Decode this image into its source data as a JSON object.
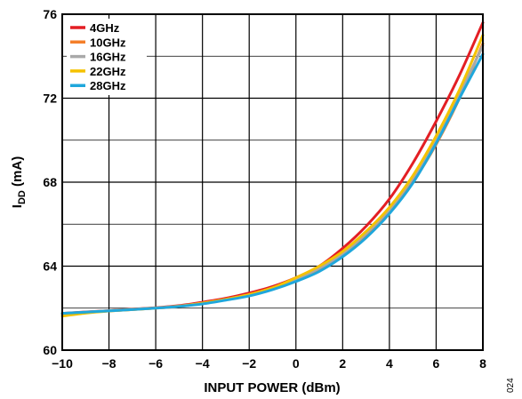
{
  "figure_id": "024",
  "chart_data": {
    "type": "line",
    "title": "",
    "xlabel": "INPUT POWER (dBm)",
    "ylabel": "I_DD (mA)",
    "ylabel_main": "I",
    "ylabel_sub": "DD",
    "ylabel_unit": " (mA)",
    "xlim": [
      -10,
      8
    ],
    "ylim": [
      60,
      76
    ],
    "xticks": [
      -10,
      -8,
      -6,
      -4,
      -2,
      0,
      2,
      4,
      6,
      8
    ],
    "xtick_labels": [
      "−10",
      "−8",
      "−6",
      "−4",
      "−2",
      "0",
      "2",
      "4",
      "6",
      "8"
    ],
    "yticks": [
      60,
      64,
      68,
      72,
      76
    ],
    "ytick_labels": [
      "60",
      "64",
      "68",
      "72",
      "76"
    ],
    "grid": true,
    "legend_position": "top-left",
    "x": [
      -10,
      -9,
      -8,
      -7,
      -6,
      -5,
      -4,
      -3,
      -2,
      -1,
      0,
      1,
      2,
      3,
      4,
      5,
      6,
      7,
      8
    ],
    "series": [
      {
        "name": "4GHz",
        "color": "#e31e24",
        "values": [
          61.75,
          61.82,
          61.88,
          61.95,
          62.02,
          62.12,
          62.28,
          62.47,
          62.72,
          63.03,
          63.45,
          64.0,
          64.85,
          65.9,
          67.2,
          68.9,
          70.9,
          73.1,
          75.6
        ]
      },
      {
        "name": "10GHz",
        "color": "#f47f2a",
        "values": [
          61.72,
          61.8,
          61.87,
          61.93,
          62.0,
          62.08,
          62.22,
          62.4,
          62.62,
          62.93,
          63.35,
          63.85,
          64.5,
          65.45,
          66.55,
          68.0,
          69.8,
          72.0,
          74.6
        ]
      },
      {
        "name": "16GHz",
        "color": "#a9a9a9",
        "values": [
          61.74,
          61.81,
          61.88,
          61.94,
          62.01,
          62.1,
          62.24,
          62.42,
          62.64,
          62.95,
          63.38,
          63.9,
          64.6,
          65.55,
          66.7,
          68.2,
          70.05,
          72.2,
          74.5
        ]
      },
      {
        "name": "22GHz",
        "color": "#f5c200",
        "values": [
          61.62,
          61.76,
          61.86,
          61.93,
          62.0,
          62.09,
          62.24,
          62.42,
          62.65,
          62.97,
          63.45,
          64.0,
          64.7,
          65.65,
          66.8,
          68.3,
          70.2,
          72.4,
          75.0
        ]
      },
      {
        "name": "28GHz",
        "color": "#1fa7dc",
        "values": [
          61.75,
          61.81,
          61.87,
          61.93,
          62.0,
          62.08,
          62.2,
          62.38,
          62.58,
          62.88,
          63.27,
          63.75,
          64.45,
          65.35,
          66.5,
          67.95,
          69.85,
          72.0,
          74.1
        ]
      }
    ]
  }
}
